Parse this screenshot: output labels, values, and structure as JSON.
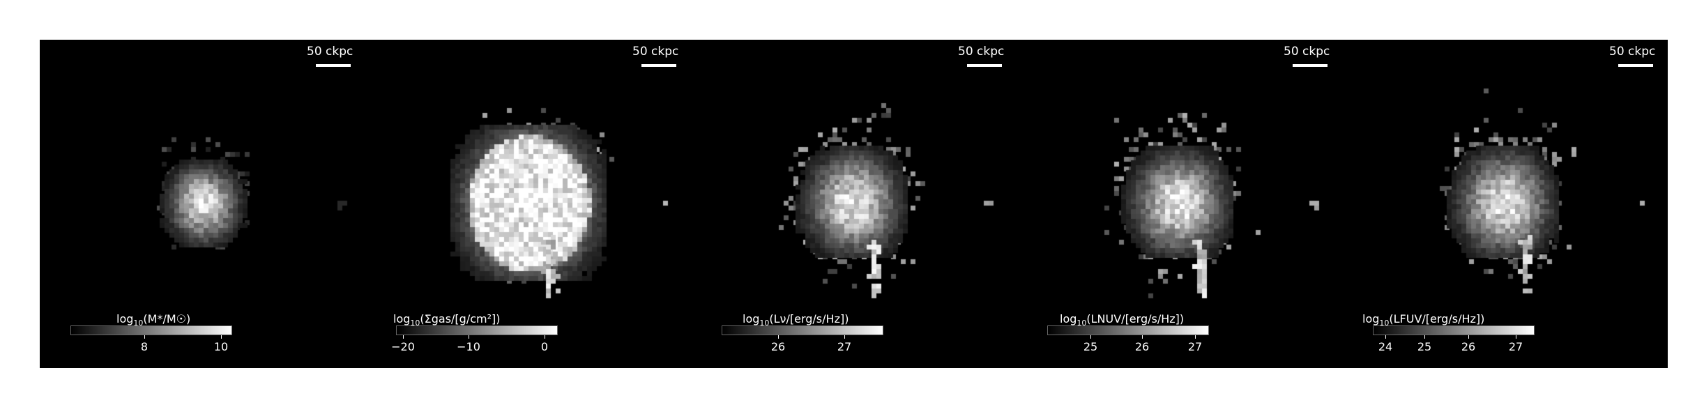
{
  "figure": {
    "background_color": "#000000",
    "panels": [
      {
        "id": "stellar-mass",
        "scale_label": "50 ckpc",
        "colorbar": {
          "label_prefix": "log",
          "label_sub": "10",
          "label_rest": "(M*/M☉)",
          "ticks": [
            "8",
            "10"
          ],
          "tick_fracs": [
            0.46,
            0.93
          ]
        },
        "pattern": "compact"
      },
      {
        "id": "gas-metal-column",
        "scale_label": "50 ckpc",
        "colorbar": {
          "label_prefix": "log",
          "label_sub": "10",
          "label_rest": "(Σgas/[g/cm²])",
          "ticks": [
            "−20",
            "−10",
            "0"
          ],
          "tick_fracs": [
            0.04,
            0.45,
            0.92
          ]
        },
        "pattern": "extended"
      },
      {
        "id": "lyman-alpha-luminosity",
        "scale_label": "50 ckpc",
        "colorbar": {
          "label_prefix": "log",
          "label_sub": "10",
          "label_rest": "(Lν/[erg/s/Hz])",
          "ticks": [
            "26",
            "27"
          ],
          "tick_fracs": [
            0.35,
            0.76
          ]
        },
        "pattern": "diffuse"
      },
      {
        "id": "nuv-luminosity",
        "scale_label": "50 ckpc",
        "colorbar": {
          "label_prefix": "log",
          "label_sub": "10",
          "label_rest": "(LNUV/[erg/s/Hz])",
          "ticks": [
            "25",
            "26",
            "27"
          ],
          "tick_fracs": [
            0.27,
            0.58,
            0.91
          ]
        },
        "pattern": "diffuse"
      },
      {
        "id": "fuv-luminosity",
        "scale_label": "50 ckpc",
        "colorbar": {
          "label_prefix": "log",
          "label_sub": "10",
          "label_rest": "(LFUV/[erg/s/Hz])",
          "ticks": [
            "24",
            "25",
            "26",
            "27"
          ],
          "tick_fracs": [
            0.08,
            0.32,
            0.59,
            0.88
          ]
        },
        "pattern": "diffuse"
      }
    ]
  }
}
